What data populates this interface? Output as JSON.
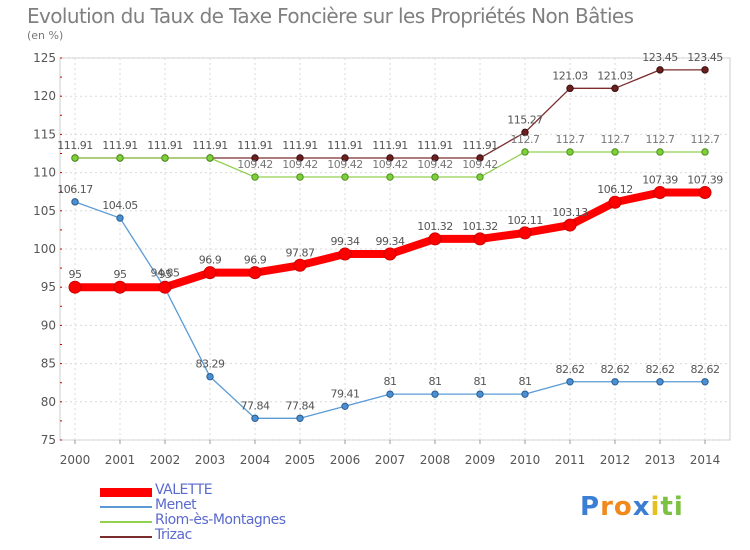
{
  "title": "Evolution du Taux de Taxe Foncière sur les Propriétés Non Bâties",
  "subtitle": "(en %)",
  "chart_data": {
    "type": "line",
    "title": "Evolution du Taux de Taxe Foncière sur les Propriétés Non Bâties",
    "ylabel": "(en %)",
    "xlabel": "",
    "x": [
      "2000",
      "2001",
      "2002",
      "2003",
      "2004",
      "2005",
      "2006",
      "2007",
      "2008",
      "2009",
      "2010",
      "2011",
      "2012",
      "2013",
      "2014"
    ],
    "ylim": [
      75,
      125
    ],
    "yticks": [
      75,
      80,
      85,
      90,
      95,
      100,
      105,
      110,
      115,
      120,
      125
    ],
    "grid": true,
    "legend": "bottom-left",
    "series": [
      {
        "name": "VALETTE",
        "color": "#ff0000",
        "values": [
          95,
          95,
          95,
          96.9,
          96.9,
          97.87,
          99.34,
          99.34,
          101.32,
          101.32,
          102.11,
          103.13,
          106.12,
          107.39,
          107.39
        ]
      },
      {
        "name": "Menet",
        "color": "#5b9bd5",
        "values": [
          106.17,
          104.05,
          94.85,
          83.29,
          77.84,
          77.84,
          79.41,
          81,
          81,
          81,
          81,
          82.62,
          82.62,
          82.62,
          82.62
        ]
      },
      {
        "name": "Riom-ès-Montagnes",
        "color": "#92d050",
        "values": [
          111.91,
          111.91,
          111.91,
          111.91,
          109.42,
          109.42,
          109.42,
          109.42,
          109.42,
          109.42,
          112.7,
          112.7,
          112.7,
          112.7,
          112.7
        ]
      },
      {
        "name": "Trizac",
        "color": "#7b2c2c",
        "values": [
          111.91,
          111.91,
          111.91,
          111.91,
          111.91,
          111.91,
          111.91,
          111.91,
          111.91,
          111.91,
          115.27,
          121.03,
          121.03,
          123.45,
          123.45
        ]
      }
    ],
    "point_labels": {
      "VALETTE": [
        "95",
        "95",
        "95",
        "96.9",
        "96.9",
        "97.87",
        "99.34",
        "99.34",
        "101.32",
        "101.32",
        "102.11",
        "103.13",
        "106.12",
        "107.39",
        "107.39"
      ],
      "Menet": [
        "106.17",
        "104.05",
        "94.85",
        "83.29",
        "77.84",
        "77.84",
        "79.41",
        "81",
        "81",
        "81",
        "81",
        "82.62",
        "82.62",
        "82.62",
        "82.62"
      ],
      "Riom-ès-Montagnes": [
        "",
        "",
        "",
        "",
        "109.42",
        "109.42",
        "109.42",
        "109.42",
        "109.42",
        "109.42",
        "112.7",
        "112.7",
        "112.7",
        "112.7",
        "112.7"
      ],
      "Trizac": [
        "111.91",
        "111.91",
        "111.91",
        "111.91",
        "111.91",
        "111.91",
        "111.91",
        "111.91",
        "111.91",
        "111.91",
        "115.27",
        "121.03",
        "121.03",
        "123.45",
        "123.45"
      ]
    }
  },
  "logo": {
    "text": "Proxiti",
    "letters": [
      "P",
      "r",
      "o",
      "x",
      "i",
      "t",
      "i"
    ],
    "colors": [
      "#3b7fd4",
      "#f08a1c",
      "#f08a1c",
      "#3b7fd4",
      "#e6c020",
      "#7cc142",
      "#7cc142"
    ]
  }
}
